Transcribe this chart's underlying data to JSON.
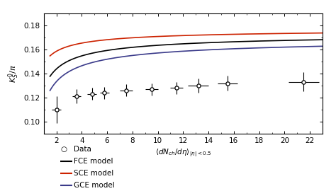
{
  "ylabel": "$K^0_S/\\pi$",
  "xlabel": "$\\langle dN_{ch}/d\\eta \\rangle_{|\\eta|<0.5}$",
  "xlim": [
    1,
    23
  ],
  "ylim": [
    0.09,
    0.19
  ],
  "yticks": [
    0.1,
    0.12,
    0.14,
    0.16,
    0.18
  ],
  "xticks": [
    2,
    4,
    6,
    8,
    10,
    12,
    14,
    16,
    18,
    20,
    22
  ],
  "fce_color": "#000000",
  "sce_color": "#cc2200",
  "gce_color": "#3b3b8a",
  "fce_curve": {
    "A": 0.175,
    "B": 0.048,
    "alpha": 0.62
  },
  "sce_curve": {
    "A": 0.178,
    "B": 0.03,
    "alpha": 0.62
  },
  "gce_curve": {
    "A": 0.171,
    "B": 0.058,
    "alpha": 0.62
  },
  "data_points": {
    "x": [
      2.0,
      3.6,
      4.8,
      5.8,
      7.5,
      9.5,
      11.5,
      13.2,
      15.5,
      21.5
    ],
    "y": [
      0.11,
      0.121,
      0.123,
      0.124,
      0.126,
      0.127,
      0.128,
      0.13,
      0.132,
      0.133
    ],
    "xerr": [
      0.35,
      0.35,
      0.35,
      0.35,
      0.5,
      0.5,
      0.5,
      0.8,
      0.8,
      1.2
    ],
    "yerr": [
      0.011,
      0.006,
      0.005,
      0.005,
      0.005,
      0.005,
      0.005,
      0.006,
      0.006,
      0.008
    ]
  },
  "legend_labels": [
    "Data",
    "FCE model",
    "SCE model",
    "GCE model"
  ],
  "plot_bg": "#ffffff",
  "fig_bg": "#ffffff"
}
